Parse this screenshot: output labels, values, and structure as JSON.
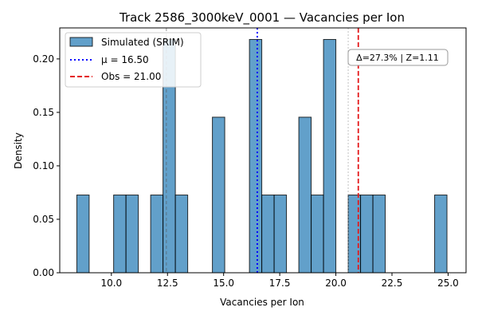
{
  "chart_data": {
    "type": "bar",
    "title": "Track 2586_3000keV_0001 — Vacancies per Ion",
    "xlabel": "Vacancies per Ion",
    "ylabel": "Density",
    "xlim": [
      7.7,
      25.8
    ],
    "ylim": [
      0,
      0.229
    ],
    "xticks": [
      10.0,
      12.5,
      15.0,
      17.5,
      20.0,
      22.5,
      25.0
    ],
    "yticks": [
      0.0,
      0.05,
      0.1,
      0.15,
      0.2
    ],
    "tick_decimals": {
      "x": 1,
      "y": 2
    },
    "grid": false,
    "bin_width": 0.55,
    "series": [
      {
        "name": "Simulated (SRIM)",
        "color": "#1f77b4",
        "bins": [
          {
            "start": 8.46,
            "value": 0.0727
          },
          {
            "start": 9.56,
            "value": 0.0
          },
          {
            "start": 10.1,
            "value": 0.0727
          },
          {
            "start": 10.65,
            "value": 0.0727
          },
          {
            "start": 11.75,
            "value": 0.0727
          },
          {
            "start": 12.3,
            "value": 0.2182
          },
          {
            "start": 12.85,
            "value": 0.0727
          },
          {
            "start": 14.5,
            "value": 0.1455
          },
          {
            "start": 16.15,
            "value": 0.2182
          },
          {
            "start": 16.7,
            "value": 0.0727
          },
          {
            "start": 17.25,
            "value": 0.0727
          },
          {
            "start": 18.35,
            "value": 0.1455
          },
          {
            "start": 18.9,
            "value": 0.0727
          },
          {
            "start": 19.45,
            "value": 0.2182
          },
          {
            "start": 20.55,
            "value": 0.0727
          },
          {
            "start": 21.1,
            "value": 0.0727
          },
          {
            "start": 21.65,
            "value": 0.0727
          },
          {
            "start": 24.4,
            "value": 0.0727
          }
        ]
      }
    ],
    "reference_lines": [
      {
        "x": 16.5,
        "label": "μ = 16.50",
        "color": "#0000ff",
        "style": "dotted",
        "in_legend": true
      },
      {
        "x": 21.0,
        "label": "Obs = 21.00",
        "color": "#e41a1c",
        "style": "dashed",
        "in_legend": true
      },
      {
        "x": 12.45,
        "color": "#555555",
        "style": "dashed-faint",
        "in_legend": false
      },
      {
        "x": 20.55,
        "color": "#999999",
        "style": "dotted-faint",
        "in_legend": false
      }
    ],
    "legend_position": "upper-left",
    "annotation": "Δ=27.3% | Z=1.11"
  }
}
